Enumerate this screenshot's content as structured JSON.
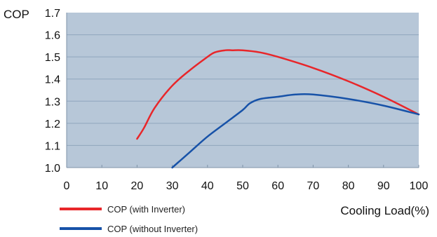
{
  "chart_data": {
    "type": "line",
    "title": "",
    "xlabel": "Cooling Load(%)",
    "ylabel": "COP",
    "xlim": [
      0,
      100
    ],
    "ylim": [
      1.0,
      1.7
    ],
    "x_ticks": [
      "0",
      "10",
      "20",
      "30",
      "40",
      "50",
      "60",
      "70",
      "80",
      "90",
      "100"
    ],
    "y_ticks": [
      "1.7",
      "1.6",
      "1.5",
      "1.4",
      "1.3",
      "1.2",
      "1.1",
      "1.0"
    ],
    "grid": "horizontal",
    "legend_position": "bottom-left",
    "plot_background": "#b7c7d8",
    "series": [
      {
        "name": "COP (with Inverter)",
        "color": "#e8262a",
        "x": [
          20,
          22,
          25,
          30,
          35,
          40,
          42,
          45,
          47,
          50,
          55,
          60,
          70,
          80,
          90,
          100
        ],
        "y": [
          1.13,
          1.18,
          1.27,
          1.37,
          1.44,
          1.5,
          1.52,
          1.53,
          1.53,
          1.53,
          1.52,
          1.5,
          1.45,
          1.39,
          1.32,
          1.24
        ]
      },
      {
        "name": "COP (without Inverter)",
        "color": "#1752a8",
        "x": [
          30,
          35,
          40,
          45,
          50,
          52,
          55,
          60,
          65,
          70,
          80,
          90,
          100
        ],
        "y": [
          1.0,
          1.07,
          1.14,
          1.2,
          1.26,
          1.29,
          1.31,
          1.32,
          1.33,
          1.33,
          1.31,
          1.28,
          1.24
        ]
      }
    ]
  }
}
